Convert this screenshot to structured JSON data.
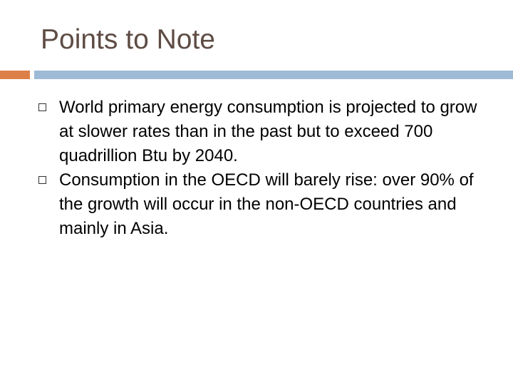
{
  "title": "Points to Note",
  "bullets": [
    "World primary energy consumption is projected to grow at slower rates than in the past but to exceed 700 quadrillion Btu by 2040.",
    "Consumption in the OECD will barely rise: over 90% of the growth will occur in the non-OECD countries and mainly in Asia."
  ]
}
